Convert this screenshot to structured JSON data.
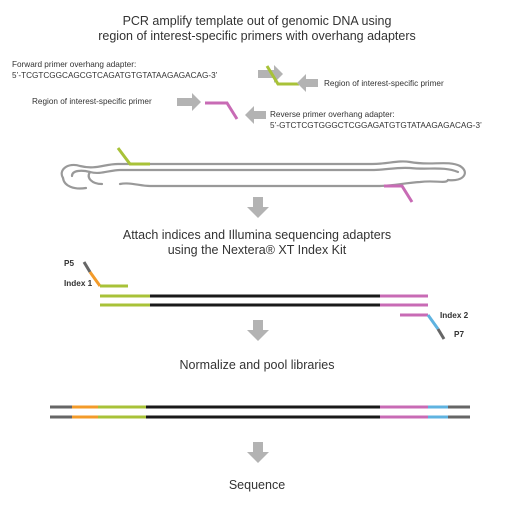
{
  "step1": {
    "title_line1": "PCR amplify template out of genomic DNA using",
    "title_line2": "region of interest-specific primers with overhang adapters"
  },
  "forward_adapter": {
    "label": "Forward primer overhang adapter:",
    "sequence": "5’-TCGTCGGCAGCGTCAGATGTGTATAAGAGACAG-3’"
  },
  "roi_primer_right_label": "Region of interest-specific primer",
  "roi_primer_left_label": "Region of interest-specific primer",
  "reverse_adapter": {
    "label": "Reverse primer overhang adapter:",
    "sequence": "5’-GTCTCGTGGGCTCGGAGATGTGTATAAGAGACAG-3’"
  },
  "step2": {
    "title_line1": "Attach indices and Illumina sequencing adapters",
    "title_line2": "using the Nextera® XT Index Kit"
  },
  "labels": {
    "p5": "P5",
    "index1": "Index 1",
    "index2": "Index 2",
    "p7": "P7"
  },
  "step3": {
    "title": "Normalize and pool libraries"
  },
  "step4": {
    "title": "Sequence"
  },
  "colors": {
    "arrow_gray": "#b3b3b3",
    "strand_black": "#1a1a1a",
    "gray_adapter": "#666666",
    "genomic_outline": "#999999",
    "roi_green": "#a8c238",
    "reverse_magenta": "#c86bb5",
    "index1_orange": "#f39b2a",
    "index2_blue": "#5fb3e0"
  }
}
